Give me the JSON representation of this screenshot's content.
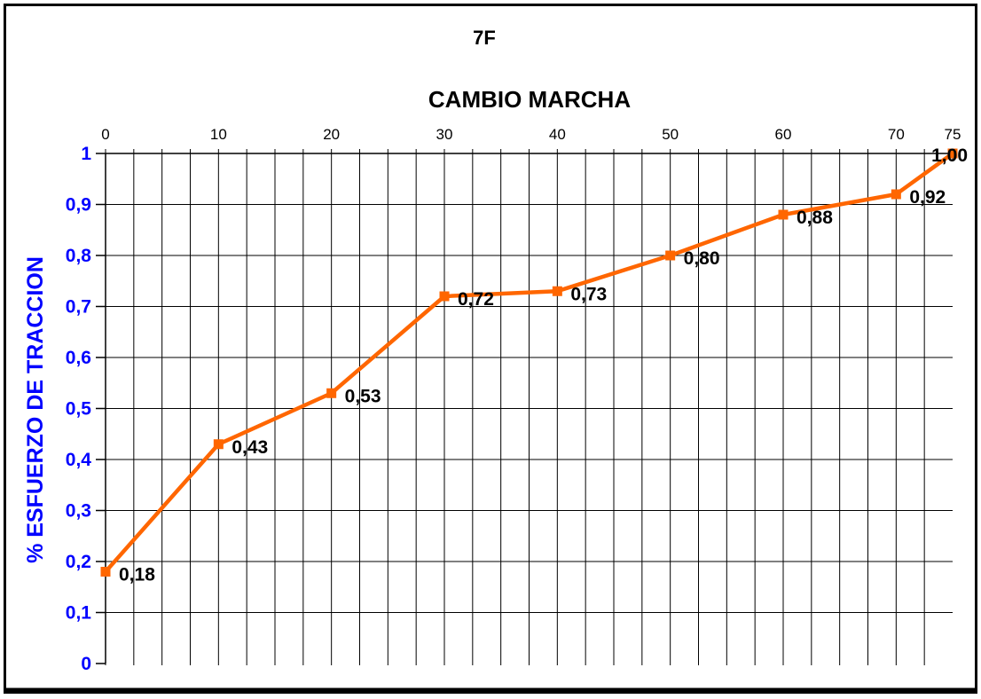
{
  "chart_data": {
    "type": "line",
    "title": "7F",
    "x_axis_title": "CAMBIO MARCHA",
    "y_axis_title": "% ESFUERZO DE TRACCION",
    "xlim": [
      0,
      75
    ],
    "ylim": [
      0,
      1
    ],
    "x_minor_interval": 2.5,
    "grid": "both",
    "legend": "none",
    "decimal_separator": ",",
    "x_ticks": {
      "values": [
        0,
        10,
        20,
        30,
        40,
        50,
        60,
        70,
        75
      ],
      "labels": [
        "0",
        "10",
        "20",
        "30",
        "40",
        "50",
        "60",
        "70",
        "75"
      ]
    },
    "y_ticks": {
      "values": [
        0,
        0.1,
        0.2,
        0.3,
        0.4,
        0.5,
        0.6,
        0.7,
        0.8,
        0.9,
        1
      ],
      "labels": [
        "0",
        "0,1",
        "0,2",
        "0,3",
        "0,4",
        "0,5",
        "0,6",
        "0,7",
        "0,8",
        "0,9",
        "1"
      ]
    },
    "series": [
      {
        "name": "7F",
        "x": [
          0,
          10,
          20,
          30,
          40,
          50,
          60,
          70,
          75
        ],
        "y": [
          0.18,
          0.43,
          0.53,
          0.72,
          0.73,
          0.8,
          0.88,
          0.92,
          1.0
        ],
        "point_labels": [
          "0,18",
          "0,43",
          "0,53",
          "0,72",
          "0,73",
          "0,80",
          "0,88",
          "0,92",
          "1,00"
        ],
        "color": "#FF6600",
        "marker": "square",
        "marker_size": 11,
        "line_width": 4.5
      }
    ],
    "colors": {
      "y_tick_label": "#0000FF",
      "y_axis_title": "#0000FF",
      "x_tick_label": "#000000",
      "title": "#000000",
      "point_label": "#000000",
      "grid": "#000000",
      "axis": "#000000",
      "frame_border": "#000000",
      "background": "#FFFFFF"
    }
  }
}
